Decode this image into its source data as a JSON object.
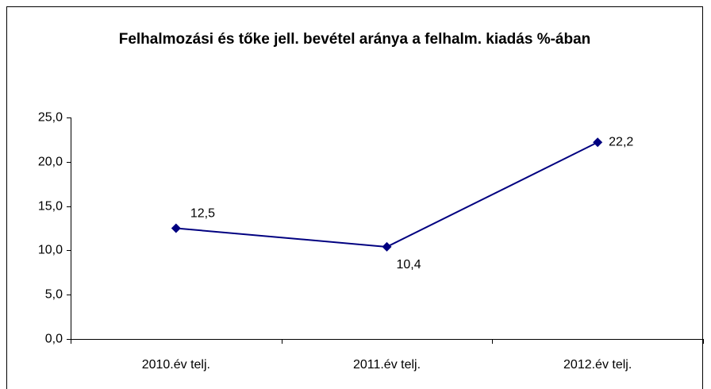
{
  "chart_data": {
    "type": "line",
    "title": "Felhalmozási és tőke jell. bevétel aránya a felhalm. kiadás %-ában",
    "categories": [
      "2010.év telj.",
      "2011.év telj.",
      "2012.év telj."
    ],
    "series": [
      {
        "name": "Felhalmozási és tőke jell. bevétel aránya",
        "color": "#000080",
        "values": [
          12.5,
          10.4,
          22.2
        ],
        "value_labels": [
          "12,5",
          "10,4",
          "22,2"
        ]
      }
    ],
    "ylim": [
      0,
      25
    ],
    "yticks": [
      {
        "value": 0,
        "label": "0,0"
      },
      {
        "value": 5,
        "label": "5,0"
      },
      {
        "value": 10,
        "label": "10,0"
      },
      {
        "value": 15,
        "label": "15,0"
      },
      {
        "value": 20,
        "label": "20,0"
      },
      {
        "value": 25,
        "label": "25,0"
      }
    ]
  }
}
